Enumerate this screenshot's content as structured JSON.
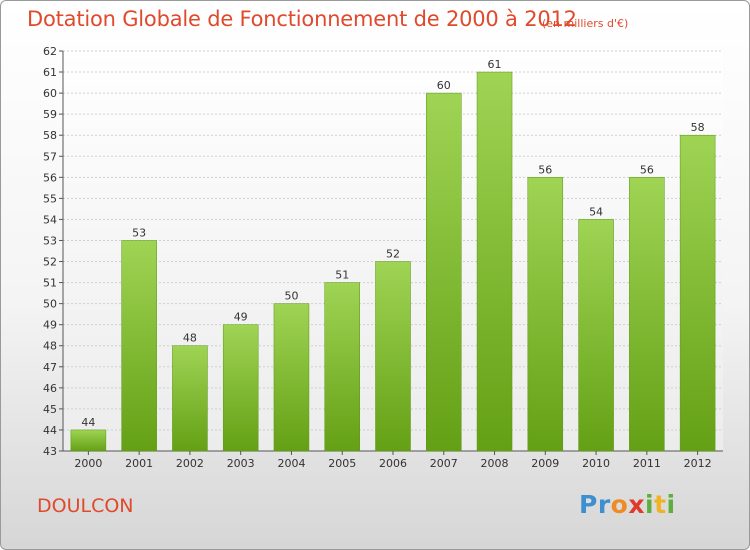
{
  "header": {
    "title": "Dotation Globale de Fonctionnement de 2000 à 2012",
    "unit": "(en milliers d'€)"
  },
  "footer": {
    "commune": "DOULCON",
    "logo": "Proxiti",
    "logo_letters": [
      {
        "ch": "P",
        "color": "#3d8fd0"
      },
      {
        "ch": "r",
        "color": "#3d8fd0"
      },
      {
        "ch": "o",
        "color": "#f08a24"
      },
      {
        "ch": "x",
        "color": "#e03a2a"
      },
      {
        "ch": "i",
        "color": "#5fae3b"
      },
      {
        "ch": "t",
        "color": "#f0b323"
      },
      {
        "ch": "i",
        "color": "#5fae3b"
      }
    ]
  },
  "colors": {
    "accent": "#e0492c",
    "bar_light": "#9fd454",
    "bar_dark": "#64a015"
  },
  "chart_data": {
    "type": "bar",
    "title": "Dotation Globale de Fonctionnement de 2000 à 2012",
    "subtitle": "(en milliers d'€)",
    "xlabel": "",
    "ylabel": "",
    "categories": [
      "2000",
      "2001",
      "2002",
      "2003",
      "2004",
      "2005",
      "2006",
      "2007",
      "2008",
      "2009",
      "2010",
      "2011",
      "2012"
    ],
    "values": [
      44,
      53,
      48,
      49,
      50,
      51,
      52,
      60,
      61,
      56,
      54,
      56,
      58
    ],
    "ylim": [
      43,
      62
    ],
    "yticks": [
      43,
      44,
      45,
      46,
      47,
      48,
      49,
      50,
      51,
      52,
      53,
      54,
      55,
      56,
      57,
      58,
      59,
      60,
      61,
      62
    ],
    "grid": true
  }
}
